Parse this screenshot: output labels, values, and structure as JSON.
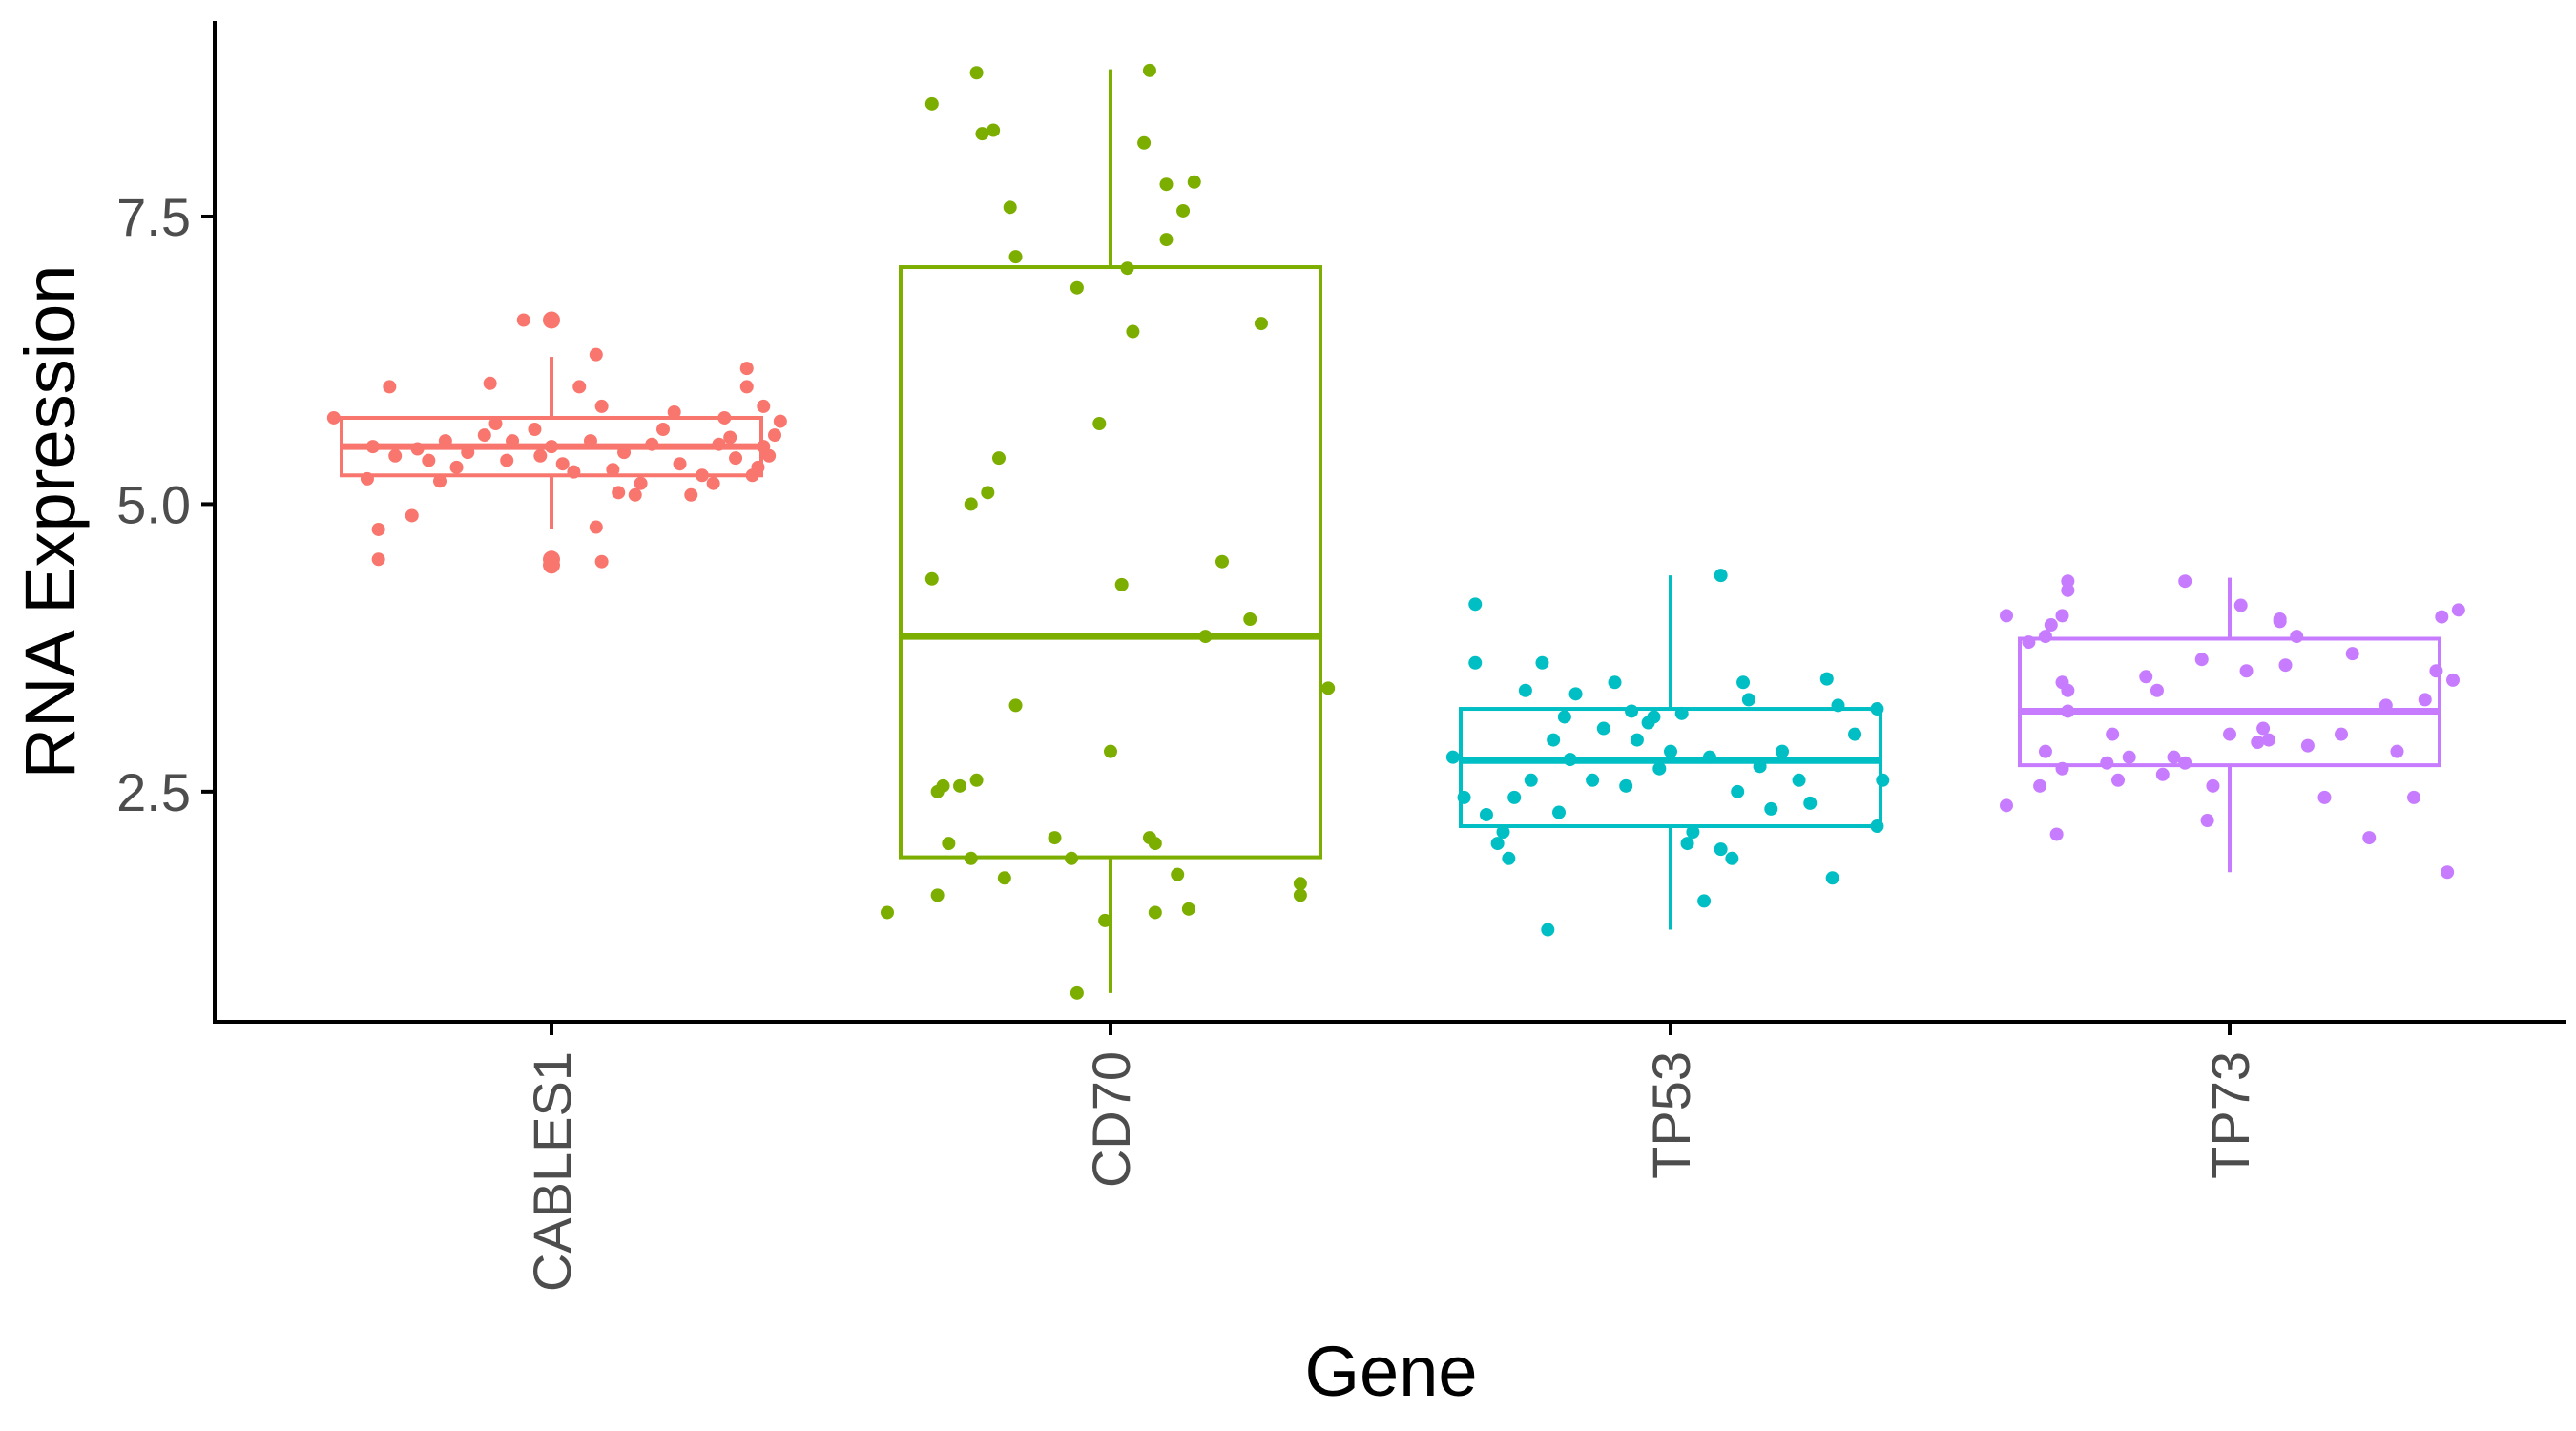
{
  "chart_data": {
    "type": "box",
    "xlabel": "Gene",
    "ylabel": "RNA Expression",
    "ylim": [
      0.5,
      9.2
    ],
    "y_ticks": [
      2.5,
      5.0,
      7.5
    ],
    "y_tick_labels": [
      "2.5",
      "5.0",
      "7.5"
    ],
    "categories": [
      "CABLES1",
      "CD70",
      "TP53",
      "TP73"
    ],
    "colors": [
      "#f8766d",
      "#7cae00",
      "#00bfc4",
      "#c77cff"
    ],
    "grid": false,
    "legend": "none",
    "boxes": [
      {
        "category": "CABLES1",
        "whisker_low": 4.78,
        "q1": 5.25,
        "median": 5.5,
        "q3": 5.75,
        "whisker_high": 6.28,
        "outliers": [
          6.6,
          4.52,
          4.47
        ],
        "points": [
          [
            -0.39,
            5.75
          ],
          [
            -0.32,
            5.5
          ],
          [
            -0.33,
            5.22
          ],
          [
            -0.31,
            4.78
          ],
          [
            -0.31,
            4.52
          ],
          [
            -0.28,
            5.42
          ],
          [
            -0.29,
            6.02
          ],
          [
            -0.25,
            4.9
          ],
          [
            -0.24,
            5.48
          ],
          [
            -0.22,
            5.38
          ],
          [
            -0.19,
            5.55
          ],
          [
            -0.17,
            5.32
          ],
          [
            -0.15,
            5.45
          ],
          [
            -0.12,
            5.6
          ],
          [
            -0.11,
            6.05
          ],
          [
            -0.1,
            5.7
          ],
          [
            -0.08,
            5.38
          ],
          [
            -0.07,
            5.55
          ],
          [
            -0.05,
            6.6
          ],
          [
            -0.03,
            5.65
          ],
          [
            -0.02,
            5.42
          ],
          [
            0.0,
            5.5
          ],
          [
            0.02,
            5.35
          ],
          [
            0.04,
            5.28
          ],
          [
            0.05,
            6.02
          ],
          [
            0.07,
            5.55
          ],
          [
            0.09,
            5.85
          ],
          [
            0.11,
            5.3
          ],
          [
            0.13,
            5.45
          ],
          [
            0.15,
            5.08
          ],
          [
            0.16,
            5.18
          ],
          [
            0.18,
            5.52
          ],
          [
            0.2,
            5.65
          ],
          [
            0.22,
            5.8
          ],
          [
            0.23,
            5.35
          ],
          [
            0.25,
            5.08
          ],
          [
            0.27,
            5.25
          ],
          [
            0.29,
            5.18
          ],
          [
            0.3,
            5.52
          ],
          [
            0.31,
            5.75
          ],
          [
            0.32,
            5.58
          ],
          [
            0.33,
            5.4
          ],
          [
            0.35,
            6.02
          ],
          [
            0.36,
            5.25
          ],
          [
            0.37,
            5.32
          ],
          [
            0.38,
            5.5
          ],
          [
            0.39,
            5.42
          ],
          [
            0.4,
            5.6
          ],
          [
            0.41,
            5.72
          ],
          [
            0.38,
            5.85
          ],
          [
            0.35,
            6.18
          ],
          [
            0.12,
            5.1
          ],
          [
            0.08,
            4.8
          ],
          [
            0.09,
            4.5
          ],
          [
            0.08,
            6.3
          ],
          [
            0.0,
            4.5
          ],
          [
            -0.2,
            5.2
          ]
        ]
      },
      {
        "category": "CD70",
        "whisker_low": 0.75,
        "q1": 1.93,
        "median": 3.85,
        "q3": 7.06,
        "whisker_high": 8.78,
        "outliers": [],
        "points": [
          [
            -0.4,
            1.45
          ],
          [
            -0.32,
            8.48
          ],
          [
            -0.32,
            4.35
          ],
          [
            -0.31,
            1.6
          ],
          [
            -0.31,
            2.5
          ],
          [
            -0.3,
            2.55
          ],
          [
            -0.29,
            2.05
          ],
          [
            -0.27,
            2.55
          ],
          [
            -0.25,
            5.0
          ],
          [
            -0.25,
            1.92
          ],
          [
            -0.24,
            2.6
          ],
          [
            -0.24,
            8.75
          ],
          [
            -0.23,
            8.22
          ],
          [
            -0.22,
            5.1
          ],
          [
            -0.21,
            8.25
          ],
          [
            -0.2,
            5.4
          ],
          [
            -0.19,
            1.75
          ],
          [
            -0.18,
            7.58
          ],
          [
            -0.17,
            7.15
          ],
          [
            -0.17,
            3.25
          ],
          [
            -0.1,
            2.1
          ],
          [
            -0.07,
            1.92
          ],
          [
            -0.06,
            6.88
          ],
          [
            -0.06,
            0.75
          ],
          [
            -0.02,
            5.7
          ],
          [
            -0.01,
            1.38
          ],
          [
            0.0,
            2.85
          ],
          [
            0.02,
            4.3
          ],
          [
            0.03,
            7.05
          ],
          [
            0.04,
            6.5
          ],
          [
            0.06,
            8.14
          ],
          [
            0.07,
            8.77
          ],
          [
            0.07,
            2.1
          ],
          [
            0.08,
            1.45
          ],
          [
            0.08,
            2.05
          ],
          [
            0.1,
            7.78
          ],
          [
            0.1,
            7.3
          ],
          [
            0.12,
            1.78
          ],
          [
            0.13,
            7.55
          ],
          [
            0.14,
            1.48
          ],
          [
            0.15,
            7.8
          ],
          [
            0.17,
            3.85
          ],
          [
            0.2,
            4.5
          ],
          [
            0.25,
            4.0
          ],
          [
            0.27,
            6.57
          ],
          [
            0.34,
            1.7
          ],
          [
            0.34,
            1.6
          ],
          [
            0.39,
            3.4
          ]
        ]
      },
      {
        "category": "TP53",
        "whisker_low": 1.3,
        "q1": 2.2,
        "median": 2.77,
        "q3": 3.22,
        "whisker_high": 4.38,
        "outliers": [],
        "points": [
          [
            -0.39,
            2.8
          ],
          [
            -0.37,
            2.45
          ],
          [
            -0.35,
            4.13
          ],
          [
            -0.35,
            3.62
          ],
          [
            -0.33,
            2.3
          ],
          [
            -0.31,
            2.05
          ],
          [
            -0.3,
            2.15
          ],
          [
            -0.29,
            1.92
          ],
          [
            -0.28,
            2.45
          ],
          [
            -0.26,
            3.38
          ],
          [
            -0.25,
            2.6
          ],
          [
            -0.23,
            3.62
          ],
          [
            -0.22,
            1.3
          ],
          [
            -0.21,
            2.95
          ],
          [
            -0.2,
            2.32
          ],
          [
            -0.19,
            3.15
          ],
          [
            -0.18,
            2.78
          ],
          [
            -0.17,
            3.35
          ],
          [
            -0.14,
            2.6
          ],
          [
            -0.12,
            3.05
          ],
          [
            -0.1,
            3.45
          ],
          [
            -0.08,
            2.55
          ],
          [
            -0.07,
            3.2
          ],
          [
            -0.06,
            2.95
          ],
          [
            -0.04,
            3.1
          ],
          [
            -0.03,
            3.15
          ],
          [
            -0.02,
            2.7
          ],
          [
            0.0,
            2.85
          ],
          [
            0.02,
            3.18
          ],
          [
            0.03,
            2.05
          ],
          [
            0.04,
            2.15
          ],
          [
            0.06,
            1.55
          ],
          [
            0.07,
            2.8
          ],
          [
            0.09,
            2.0
          ],
          [
            0.09,
            4.38
          ],
          [
            0.11,
            1.92
          ],
          [
            0.12,
            2.5
          ],
          [
            0.13,
            3.45
          ],
          [
            0.14,
            3.3
          ],
          [
            0.16,
            2.72
          ],
          [
            0.18,
            2.35
          ],
          [
            0.2,
            2.85
          ],
          [
            0.23,
            2.6
          ],
          [
            0.25,
            2.4
          ],
          [
            0.28,
            3.48
          ],
          [
            0.29,
            1.75
          ],
          [
            0.3,
            3.25
          ],
          [
            0.33,
            3.0
          ],
          [
            0.37,
            2.2
          ],
          [
            0.38,
            2.6
          ],
          [
            0.37,
            3.22
          ]
        ]
      },
      {
        "category": "TP73",
        "whisker_low": 1.8,
        "q1": 2.73,
        "median": 3.2,
        "q3": 3.83,
        "whisker_high": 4.36,
        "outliers": [],
        "points": [
          [
            -0.4,
            4.03
          ],
          [
            -0.4,
            2.38
          ],
          [
            -0.36,
            3.8
          ],
          [
            -0.34,
            2.55
          ],
          [
            -0.33,
            2.85
          ],
          [
            -0.33,
            3.85
          ],
          [
            -0.32,
            3.95
          ],
          [
            -0.31,
            2.13
          ],
          [
            -0.3,
            3.45
          ],
          [
            -0.3,
            2.7
          ],
          [
            -0.29,
            3.2
          ],
          [
            -0.29,
            3.38
          ],
          [
            -0.3,
            4.03
          ],
          [
            -0.29,
            4.25
          ],
          [
            -0.29,
            4.33
          ],
          [
            -0.22,
            2.75
          ],
          [
            -0.21,
            3.0
          ],
          [
            -0.2,
            2.6
          ],
          [
            -0.18,
            2.8
          ],
          [
            -0.15,
            3.5
          ],
          [
            -0.13,
            3.38
          ],
          [
            -0.12,
            2.65
          ],
          [
            -0.1,
            2.8
          ],
          [
            -0.08,
            2.75
          ],
          [
            -0.05,
            3.65
          ],
          [
            -0.04,
            2.25
          ],
          [
            -0.03,
            2.55
          ],
          [
            0.0,
            3.0
          ],
          [
            0.02,
            4.12
          ],
          [
            0.03,
            3.55
          ],
          [
            0.05,
            2.93
          ],
          [
            0.06,
            3.05
          ],
          [
            0.07,
            2.95
          ],
          [
            0.09,
            4.0
          ],
          [
            0.1,
            3.6
          ],
          [
            0.12,
            3.85
          ],
          [
            0.14,
            2.9
          ],
          [
            0.17,
            2.45
          ],
          [
            0.2,
            3.0
          ],
          [
            0.22,
            3.7
          ],
          [
            0.25,
            2.1
          ],
          [
            0.28,
            3.25
          ],
          [
            0.3,
            2.85
          ],
          [
            0.33,
            2.45
          ],
          [
            0.35,
            3.3
          ],
          [
            0.37,
            3.55
          ],
          [
            0.38,
            4.02
          ],
          [
            0.39,
            1.8
          ],
          [
            0.4,
            3.47
          ],
          [
            0.41,
            4.08
          ],
          [
            -0.08,
            4.33
          ],
          [
            0.09,
            3.98
          ]
        ]
      }
    ]
  }
}
